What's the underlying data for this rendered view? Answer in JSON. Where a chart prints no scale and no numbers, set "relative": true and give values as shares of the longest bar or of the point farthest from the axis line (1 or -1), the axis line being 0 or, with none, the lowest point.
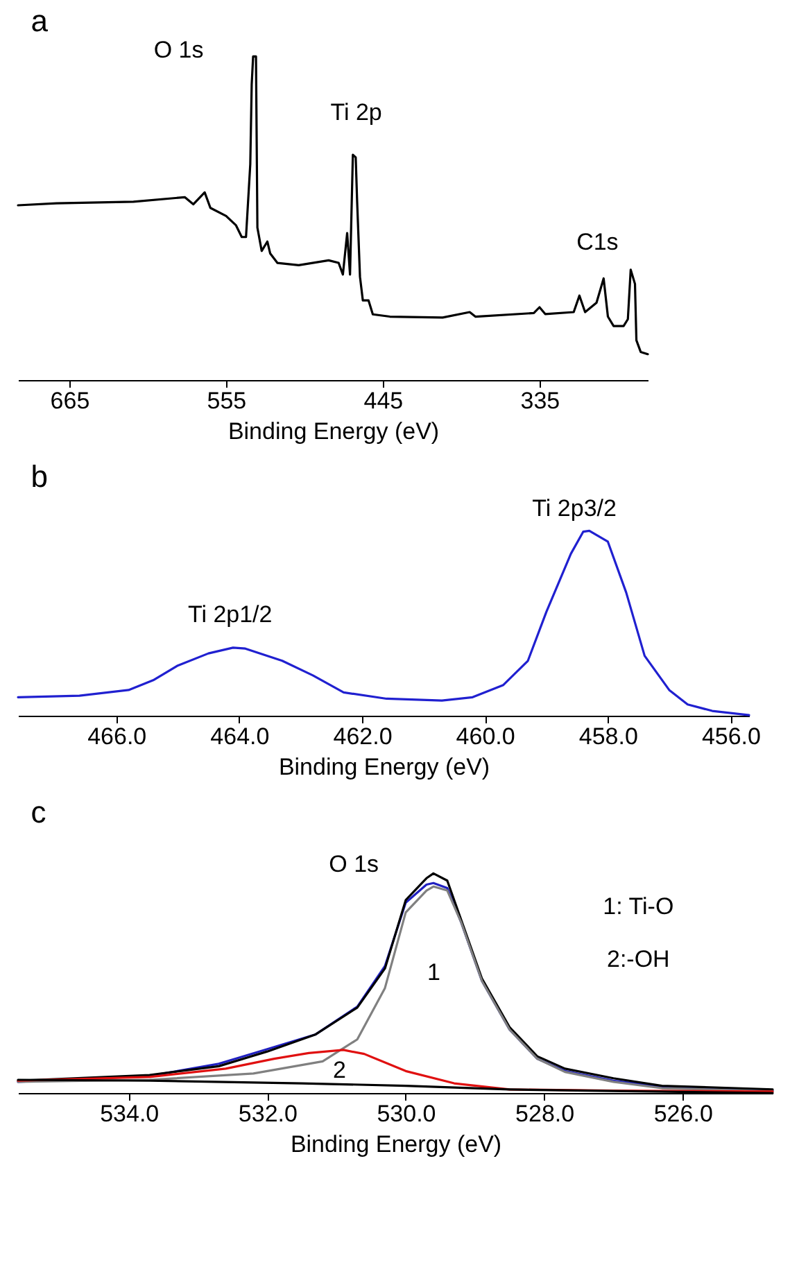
{
  "chart_data": [
    {
      "type": "line",
      "title": "a",
      "xlabel": "Binding Energy (eV)",
      "relative": true,
      "xlim": [
        701,
        259
      ],
      "xticks": [
        665,
        555,
        445,
        335
      ],
      "annotations": [
        "O 1s",
        "Ti 2p",
        "C1s"
      ],
      "x": [
        701,
        674,
        620,
        584,
        578,
        570,
        566,
        555,
        548,
        544,
        541,
        538,
        537,
        536,
        534,
        533,
        530,
        526,
        524,
        519,
        504,
        483,
        476,
        473,
        470,
        468,
        466,
        464,
        463,
        461,
        459,
        455,
        452,
        440,
        403,
        384,
        380,
        339,
        335,
        331,
        311,
        307,
        303,
        295,
        290,
        287,
        283,
        276,
        273,
        271,
        268,
        267,
        264,
        259
      ],
      "series": [
        {
          "color": "#000000",
          "values": [
            0.54,
            0.546,
            0.551,
            0.565,
            0.543,
            0.58,
            0.532,
            0.507,
            0.478,
            0.442,
            0.442,
            0.667,
            0.913,
            1.0,
            1.0,
            0.471,
            0.399,
            0.428,
            0.391,
            0.362,
            0.355,
            0.37,
            0.362,
            0.326,
            0.454,
            0.326,
            0.696,
            0.688,
            0.551,
            0.319,
            0.246,
            0.246,
            0.203,
            0.196,
            0.193,
            0.21,
            0.196,
            0.207,
            0.225,
            0.204,
            0.21,
            0.261,
            0.21,
            0.239,
            0.314,
            0.196,
            0.167,
            0.167,
            0.188,
            0.341,
            0.297,
            0.123,
            0.087,
            0.08
          ]
        }
      ]
    },
    {
      "type": "line",
      "title": "b",
      "xlabel": "Binding Energy (eV)",
      "relative": true,
      "xlim": [
        467.6,
        455.7
      ],
      "xticks": [
        {
          "value": 466,
          "label": "466.0"
        },
        {
          "value": 464,
          "label": "464.0"
        },
        {
          "value": 462,
          "label": "462.0"
        },
        {
          "value": 460,
          "label": "460.0"
        },
        {
          "value": 458,
          "label": "458.0"
        },
        {
          "value": 456,
          "label": "456.0"
        }
      ],
      "annotations": [
        "Ti 2p1/2",
        "Ti 2p3/2"
      ],
      "x": [
        467.6,
        466.6,
        465.8,
        465.4,
        465.0,
        464.5,
        464.1,
        463.9,
        463.3,
        462.8,
        462.3,
        461.6,
        460.7,
        460.2,
        459.7,
        459.3,
        459.0,
        458.6,
        458.4,
        458.3,
        458.0,
        457.7,
        457.4,
        457.0,
        456.7,
        456.3,
        455.7
      ],
      "series": [
        {
          "color": "#2020d0",
          "values": [
            0.1,
            0.108,
            0.139,
            0.192,
            0.271,
            0.337,
            0.368,
            0.363,
            0.297,
            0.218,
            0.126,
            0.092,
            0.082,
            0.1,
            0.166,
            0.297,
            0.561,
            0.876,
            0.995,
            1.0,
            0.942,
            0.666,
            0.324,
            0.139,
            0.061,
            0.026,
            0.003
          ]
        }
      ]
    },
    {
      "type": "line",
      "title": "c",
      "xlabel": "Binding Energy (eV)",
      "relative": true,
      "xlim": [
        535.6,
        524.7
      ],
      "xticks": [
        {
          "value": 534,
          "label": "534.0"
        },
        {
          "value": 532,
          "label": "532.0"
        },
        {
          "value": 530,
          "label": "530.0"
        },
        {
          "value": 528,
          "label": "528.0"
        },
        {
          "value": 526,
          "label": "526.0"
        }
      ],
      "annotations": [
        "O 1s",
        "1: Ti-O",
        "2:-OH",
        "1",
        "2"
      ],
      "series": [
        {
          "color": "#2020c0",
          "x": [
            535.6,
            533.7,
            532.7,
            532.0,
            531.3,
            530.7,
            530.3,
            530.0,
            529.7,
            529.6,
            529.4,
            529.2,
            528.9,
            528.5,
            528.1,
            527.7,
            527.0,
            526.3,
            524.7
          ],
          "values": [
            0.051,
            0.078,
            0.133,
            0.2,
            0.267,
            0.393,
            0.578,
            0.867,
            0.949,
            0.956,
            0.933,
            0.778,
            0.511,
            0.289,
            0.156,
            0.1,
            0.056,
            0.029,
            0.011
          ]
        },
        {
          "color": "#000000",
          "x": [
            535.6,
            533.7,
            532.7,
            532.0,
            531.3,
            530.7,
            530.3,
            530.0,
            529.7,
            529.6,
            529.4,
            529.2,
            528.9,
            528.5,
            528.1,
            527.7,
            527.0,
            526.3,
            524.7
          ],
          "values": [
            0.056,
            0.082,
            0.122,
            0.189,
            0.267,
            0.389,
            0.567,
            0.878,
            0.978,
            1.0,
            0.967,
            0.789,
            0.522,
            0.3,
            0.167,
            0.111,
            0.067,
            0.033,
            0.016
          ]
        },
        {
          "color": "#808080",
          "x": [
            535.6,
            533.7,
            532.2,
            531.2,
            530.7,
            530.3,
            530.0,
            529.7,
            529.6,
            529.4,
            529.2,
            528.9,
            528.5,
            528.1,
            527.7,
            527.0,
            526.3,
            524.7
          ],
          "values": [
            0.051,
            0.06,
            0.089,
            0.144,
            0.244,
            0.478,
            0.822,
            0.922,
            0.94,
            0.922,
            0.778,
            0.511,
            0.289,
            0.156,
            0.096,
            0.051,
            0.022,
            0.007
          ]
        },
        {
          "color": "#e01010",
          "x": [
            535.6,
            533.7,
            532.6,
            531.9,
            531.4,
            530.9,
            530.6,
            530.0,
            529.3,
            528.5,
            527.0,
            524.7
          ],
          "values": [
            0.056,
            0.073,
            0.111,
            0.156,
            0.182,
            0.196,
            0.178,
            0.1,
            0.044,
            0.016,
            0.011,
            0.007
          ]
        },
        {
          "color": "#000000",
          "x": [
            535.6,
            533.7,
            531.5,
            530.0,
            528.5,
            527.0,
            524.7
          ],
          "values": [
            0.06,
            0.056,
            0.044,
            0.033,
            0.016,
            0.009,
            0.0
          ]
        }
      ]
    }
  ]
}
